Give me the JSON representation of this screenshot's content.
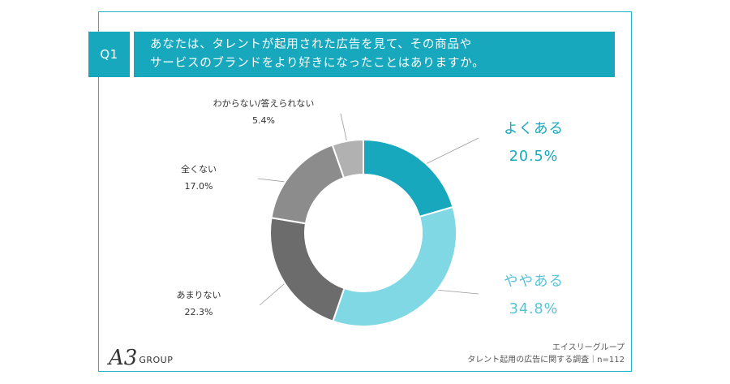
{
  "question": {
    "badge": "Q1",
    "line1": "あなたは、タレントが起用された広告を見て、その商品や",
    "line2": "サービスのブランドをより好きになったことはありますか。"
  },
  "colors": {
    "accent": "#18a8bd",
    "frame": "#27b3c6"
  },
  "chart_data": {
    "type": "pie",
    "donut": true,
    "categories": [
      "よくある",
      "ややある",
      "あまりない",
      "全くない",
      "わからない/答えられない"
    ],
    "values": [
      20.5,
      34.8,
      22.3,
      17.0,
      5.4
    ],
    "value_labels": [
      "20.5%",
      "34.8%",
      "22.3%",
      "17.0%",
      "5.4%"
    ],
    "colors": [
      "#18a8bd",
      "#7fd8e3",
      "#6c6c6c",
      "#8c8c8c",
      "#b1b1b1"
    ]
  },
  "labels": [
    {
      "name": "よくある",
      "value": "20.5%"
    },
    {
      "name": "ややある",
      "value": "34.8%"
    },
    {
      "name": "あまりない",
      "value": "22.3%"
    },
    {
      "name": "全くない",
      "value": "17.0%"
    },
    {
      "name": "わからない/答えられない",
      "value": "5.4%"
    }
  ],
  "logo": {
    "mark": "A3",
    "group": "GROUP"
  },
  "source": {
    "company": "エイスリーグループ",
    "survey": "タレント起用の広告に関する調査｜n=112"
  }
}
